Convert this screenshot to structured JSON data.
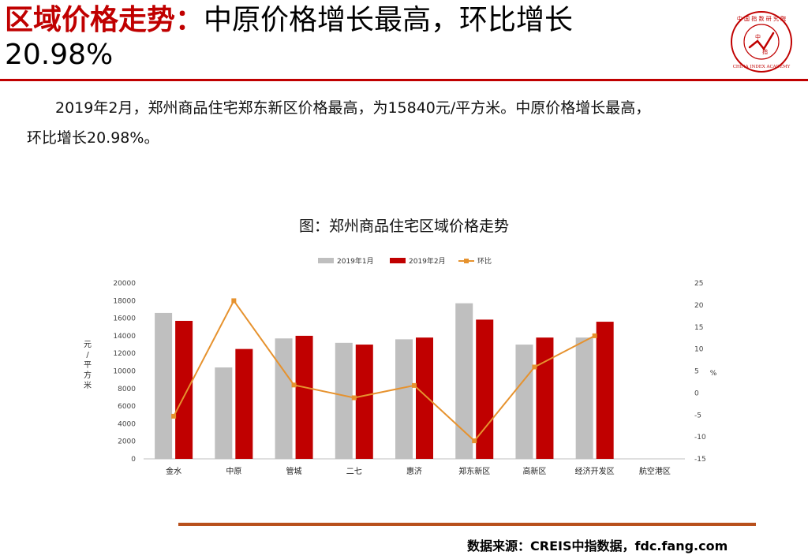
{
  "header": {
    "title_highlight": "区域价格走势：",
    "title_rest": "中原价格增长最高，环比增长",
    "title_line2": "20.98%"
  },
  "logo": {
    "icon": "china-index-academy-seal",
    "seal_text": "中国指数研究院",
    "ring_text": "CHINA INDEX ACADEMY",
    "center_text": "中指"
  },
  "summary": {
    "line1": "2019年2月，郑州商品住宅郑东新区价格最高，为15840元/平方米。中原价格增长最高，",
    "line2": "环比增长20.98%。"
  },
  "chart_caption": "图：郑州商品住宅区域价格走势",
  "chart_data": {
    "type": "bar",
    "categories": [
      "金水",
      "中原",
      "管城",
      "二七",
      "惠济",
      "郑东新区",
      "高新区",
      "经济开发区",
      "航空港区"
    ],
    "series": [
      {
        "name": "2019年1月",
        "kind": "bar",
        "axis": "left",
        "color": "#bfbfbf",
        "values": [
          16600,
          10400,
          13700,
          13200,
          13600,
          17700,
          13000,
          13800,
          null
        ]
      },
      {
        "name": "2019年2月",
        "kind": "bar",
        "axis": "left",
        "color": "#c00000",
        "values": [
          15700,
          12500,
          14000,
          13000,
          13800,
          15840,
          13800,
          15600,
          null
        ]
      },
      {
        "name": "环比",
        "kind": "line",
        "axis": "right",
        "color": "#e6922e",
        "values": [
          -5.3,
          20.98,
          1.8,
          -1.1,
          1.7,
          -10.9,
          5.9,
          13.0,
          null
        ]
      }
    ],
    "ylabel": "元/平方米",
    "ylabel_chars": [
      "元",
      "/",
      "平",
      "方",
      "米"
    ],
    "y2label": "%",
    "ylim": [
      0,
      20000
    ],
    "yticks": [
      0,
      2000,
      4000,
      6000,
      8000,
      10000,
      12000,
      14000,
      16000,
      18000,
      20000
    ],
    "y2lim": [
      -15,
      25
    ],
    "y2ticks": [
      -15,
      -10,
      -5,
      0,
      5,
      10,
      15,
      20,
      25
    ],
    "legend_position": "top-center",
    "grid": false
  },
  "footer": {
    "source": "数据来源：CREIS中指数据，fdc.fang.com"
  }
}
